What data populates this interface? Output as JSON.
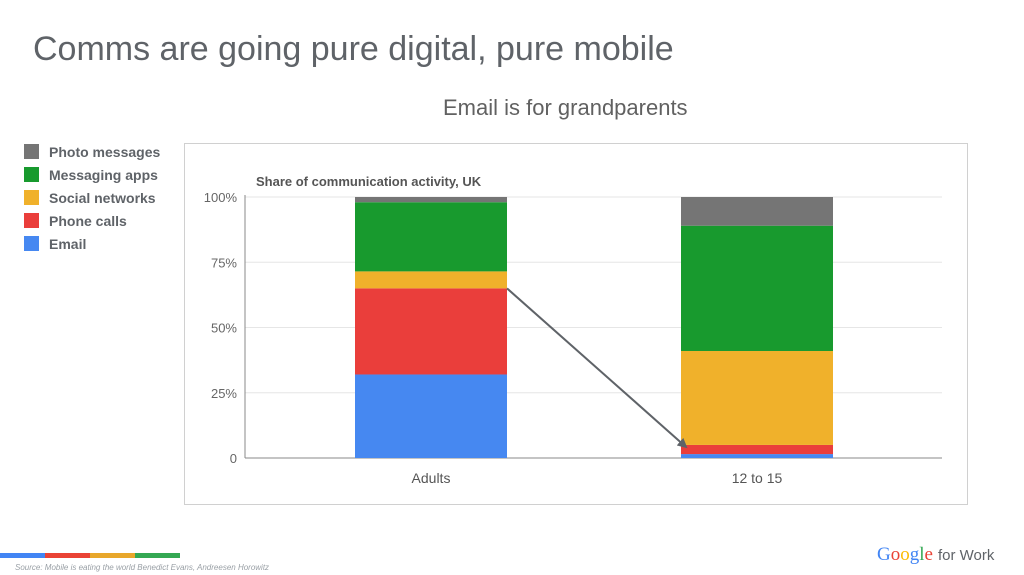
{
  "slide": {
    "title": "Comms are going pure digital, pure mobile",
    "subtitle": "Email is for grandparents",
    "source": "Source: Mobile is eating the world Benedict Evans, Andreesen Horowitz",
    "footer_colors": [
      "#4285f4",
      "#ea4335",
      "#e8a72b",
      "#34a853"
    ],
    "logo": {
      "letters": [
        {
          "ch": "G",
          "color": "#4285f4"
        },
        {
          "ch": "o",
          "color": "#ea4335"
        },
        {
          "ch": "o",
          "color": "#fbbc05"
        },
        {
          "ch": "g",
          "color": "#4285f4"
        },
        {
          "ch": "l",
          "color": "#34a853"
        },
        {
          "ch": "e",
          "color": "#ea4335"
        }
      ],
      "suffix": "for Work"
    }
  },
  "legend": [
    {
      "label": "Photo messages",
      "color": "#757575"
    },
    {
      "label": "Messaging apps",
      "color": "#189a2e"
    },
    {
      "label": "Social networks",
      "color": "#f0b12b"
    },
    {
      "label": "Phone calls",
      "color": "#ea3e3b"
    },
    {
      "label": "Email",
      "color": "#4688f1"
    }
  ],
  "chart_data": {
    "type": "bar",
    "stacked": true,
    "title": "Share of communication activity, UK",
    "categories": [
      "Adults",
      "12 to 15"
    ],
    "series": [
      {
        "name": "Email",
        "color": "#4688f1",
        "values": [
          32,
          1.5
        ]
      },
      {
        "name": "Phone calls",
        "color": "#ea3e3b",
        "values": [
          33,
          3.5
        ]
      },
      {
        "name": "Social networks",
        "color": "#f0b12b",
        "values": [
          6.5,
          36
        ]
      },
      {
        "name": "Messaging apps",
        "color": "#189a2e",
        "values": [
          26.5,
          48
        ]
      },
      {
        "name": "Photo messages",
        "color": "#757575",
        "values": [
          2,
          11
        ]
      }
    ],
    "yticks": [
      {
        "value": 0,
        "label": "0"
      },
      {
        "value": 25,
        "label": "25%"
      },
      {
        "value": 50,
        "label": "50%"
      },
      {
        "value": 75,
        "label": "75%"
      },
      {
        "value": 100,
        "label": "100%"
      }
    ],
    "ylim": [
      0,
      100
    ],
    "grid": true,
    "legend_position": "left, outside chart",
    "annotation": {
      "type": "arrow",
      "from_category": "Adults",
      "from_value": 65,
      "to_category": "12 to 15",
      "to_value": 5
    }
  }
}
